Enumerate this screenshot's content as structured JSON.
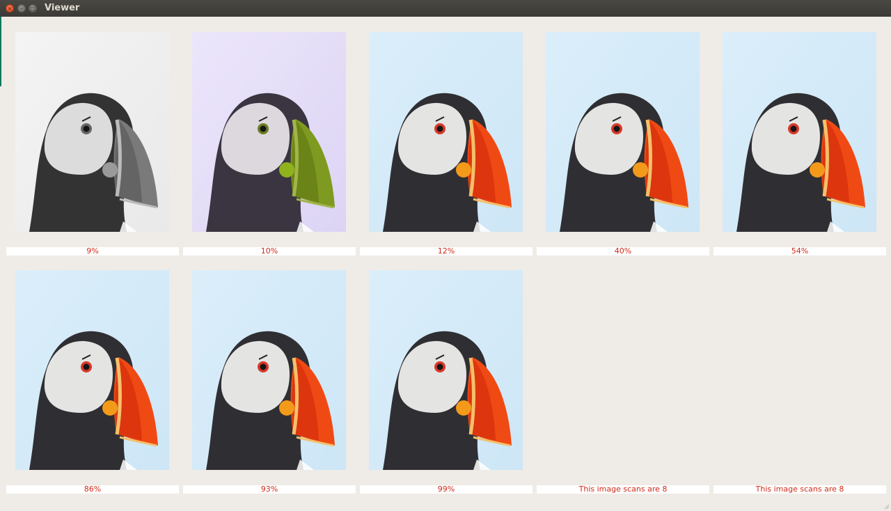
{
  "window": {
    "title": "Viewer",
    "close_icon": "close-icon",
    "minimize_icon": "minimize-icon",
    "maximize_icon": "maximize-icon"
  },
  "grid": {
    "items": [
      {
        "caption": "9%",
        "has_image": true,
        "variant": "grayscale"
      },
      {
        "caption": "10%",
        "has_image": true,
        "variant": "purple-green"
      },
      {
        "caption": "12%",
        "has_image": true,
        "variant": "color"
      },
      {
        "caption": "40%",
        "has_image": true,
        "variant": "color"
      },
      {
        "caption": "54%",
        "has_image": true,
        "variant": "color"
      },
      {
        "caption": "86%",
        "has_image": true,
        "variant": "color"
      },
      {
        "caption": "93%",
        "has_image": true,
        "variant": "color"
      },
      {
        "caption": "99%",
        "has_image": true,
        "variant": "color"
      },
      {
        "caption": "This image scans are 8",
        "has_image": false
      },
      {
        "caption": "This image scans are 8",
        "has_image": false
      }
    ]
  },
  "colors": {
    "caption_text": "#d12a1a",
    "window_bg": "#efebe7",
    "titlebar_bg": "#3b3a36"
  }
}
